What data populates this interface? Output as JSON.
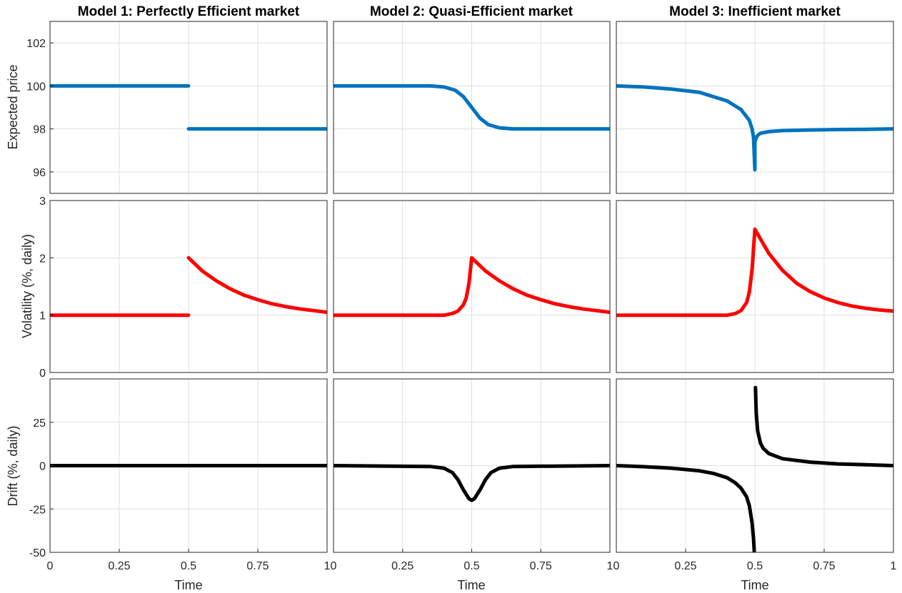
{
  "chart_data": {
    "type": "line",
    "columns": [
      {
        "title": "Model 1: Perfectly Efficient market"
      },
      {
        "title": "Model 2: Quasi-Efficient market"
      },
      {
        "title": "Model 3: Inefficient market"
      }
    ],
    "rows": [
      {
        "ylabel": "Expected price",
        "ylim": [
          95,
          103
        ],
        "yticks": [
          "96",
          "98",
          "100",
          "102"
        ],
        "ytick_values": [
          96,
          98,
          100,
          102
        ],
        "color": "#0072BD"
      },
      {
        "ylabel": "Volatility (%, daily)",
        "ylim": [
          0,
          3
        ],
        "yticks": [
          "0",
          "1",
          "2",
          "3"
        ],
        "ytick_values": [
          0,
          1,
          2,
          3
        ],
        "color": "#FF0000"
      },
      {
        "ylabel": "Drift (%, daily)",
        "ylim": [
          -50,
          50
        ],
        "yticks": [
          "-50",
          "-25",
          "0",
          "25"
        ],
        "ytick_values": [
          -50,
          -25,
          0,
          25
        ],
        "color": "#000000"
      }
    ],
    "xlabel": "Time",
    "xlim": [
      0,
      1
    ],
    "xticks": [
      "0",
      "0.25",
      "0.5",
      "0.75",
      "1"
    ],
    "xtick_values": [
      0,
      0.25,
      0.5,
      0.75,
      1
    ],
    "grid": true,
    "panels": [
      {
        "row": 0,
        "col": 0,
        "series": [
          {
            "x": [
              0,
              0.5
            ],
            "y": [
              100,
              100
            ]
          },
          {
            "x": [
              0.5,
              1
            ],
            "y": [
              98,
              98
            ]
          }
        ]
      },
      {
        "row": 0,
        "col": 1,
        "series": [
          {
            "x": [
              0,
              0.35,
              0.4,
              0.44,
              0.47,
              0.5,
              0.53,
              0.56,
              0.6,
              0.65,
              0.7,
              1
            ],
            "y": [
              100,
              100,
              99.95,
              99.8,
              99.5,
              99,
              98.5,
              98.2,
              98.05,
              98,
              98,
              98
            ]
          }
        ]
      },
      {
        "row": 0,
        "col": 2,
        "series": [
          {
            "x": [
              0,
              0.1,
              0.2,
              0.3,
              0.4,
              0.45,
              0.48,
              0.49,
              0.495,
              0.5,
              0.5,
              0.505,
              0.51,
              0.52,
              0.55,
              0.6,
              0.7,
              0.8,
              0.9,
              1
            ],
            "y": [
              100,
              99.95,
              99.85,
              99.7,
              99.3,
              98.9,
              98.4,
              98,
              97.6,
              96.1,
              97.4,
              97.6,
              97.7,
              97.8,
              97.87,
              97.92,
              97.95,
              97.97,
              97.98,
              98
            ]
          }
        ]
      },
      {
        "row": 1,
        "col": 0,
        "series": [
          {
            "x": [
              0,
              0.5
            ],
            "y": [
              1,
              1
            ]
          },
          {
            "x": [
              0.5,
              0.55,
              0.6,
              0.65,
              0.7,
              0.75,
              0.8,
              0.85,
              0.9,
              0.95,
              1
            ],
            "y": [
              2,
              1.77,
              1.6,
              1.46,
              1.35,
              1.27,
              1.2,
              1.15,
              1.11,
              1.08,
              1.05
            ]
          }
        ]
      },
      {
        "row": 1,
        "col": 1,
        "series": [
          {
            "x": [
              0,
              0.4,
              0.43,
              0.45,
              0.47,
              0.48,
              0.49,
              0.5,
              0.55,
              0.6,
              0.65,
              0.7,
              0.75,
              0.8,
              0.85,
              0.9,
              0.95,
              1
            ],
            "y": [
              1,
              1,
              1.03,
              1.07,
              1.18,
              1.3,
              1.55,
              2,
              1.77,
              1.6,
              1.46,
              1.35,
              1.27,
              1.2,
              1.15,
              1.11,
              1.08,
              1.05
            ]
          }
        ]
      },
      {
        "row": 1,
        "col": 2,
        "series": [
          {
            "x": [
              0,
              0.4,
              0.43,
              0.45,
              0.47,
              0.48,
              0.49,
              0.5,
              0.55,
              0.6,
              0.65,
              0.7,
              0.75,
              0.8,
              0.85,
              0.9,
              0.95,
              1
            ],
            "y": [
              1,
              1,
              1.03,
              1.08,
              1.22,
              1.4,
              1.8,
              2.5,
              2.08,
              1.78,
              1.56,
              1.41,
              1.3,
              1.22,
              1.16,
              1.12,
              1.09,
              1.07
            ]
          }
        ]
      },
      {
        "row": 2,
        "col": 0,
        "series": [
          {
            "x": [
              0,
              1
            ],
            "y": [
              0,
              0
            ]
          }
        ]
      },
      {
        "row": 2,
        "col": 1,
        "series": [
          {
            "x": [
              0,
              0.35,
              0.4,
              0.43,
              0.45,
              0.47,
              0.49,
              0.5,
              0.51,
              0.53,
              0.55,
              0.57,
              0.6,
              0.65,
              1
            ],
            "y": [
              0,
              -0.5,
              -1.5,
              -4,
              -8,
              -14,
              -19,
              -20,
              -19,
              -14,
              -8,
              -4,
              -1.5,
              -0.5,
              0
            ]
          }
        ]
      },
      {
        "row": 2,
        "col": 2,
        "series": [
          {
            "x": [
              0,
              0.1,
              0.2,
              0.3,
              0.35,
              0.4,
              0.43,
              0.45,
              0.47,
              0.48,
              0.49,
              0.495,
              0.498
            ],
            "y": [
              0,
              -0.6,
              -1.5,
              -3,
              -4.5,
              -7,
              -10,
              -13,
              -18,
              -23,
              -33,
              -42,
              -50
            ]
          },
          {
            "x": [
              0.502,
              0.505,
              0.51,
              0.52,
              0.53,
              0.55,
              0.6,
              0.7,
              0.8,
              0.9,
              1
            ],
            "y": [
              45,
              30,
              20,
              13,
              10,
              7,
              4,
              2,
              1,
              0.5,
              0
            ]
          }
        ]
      }
    ]
  }
}
